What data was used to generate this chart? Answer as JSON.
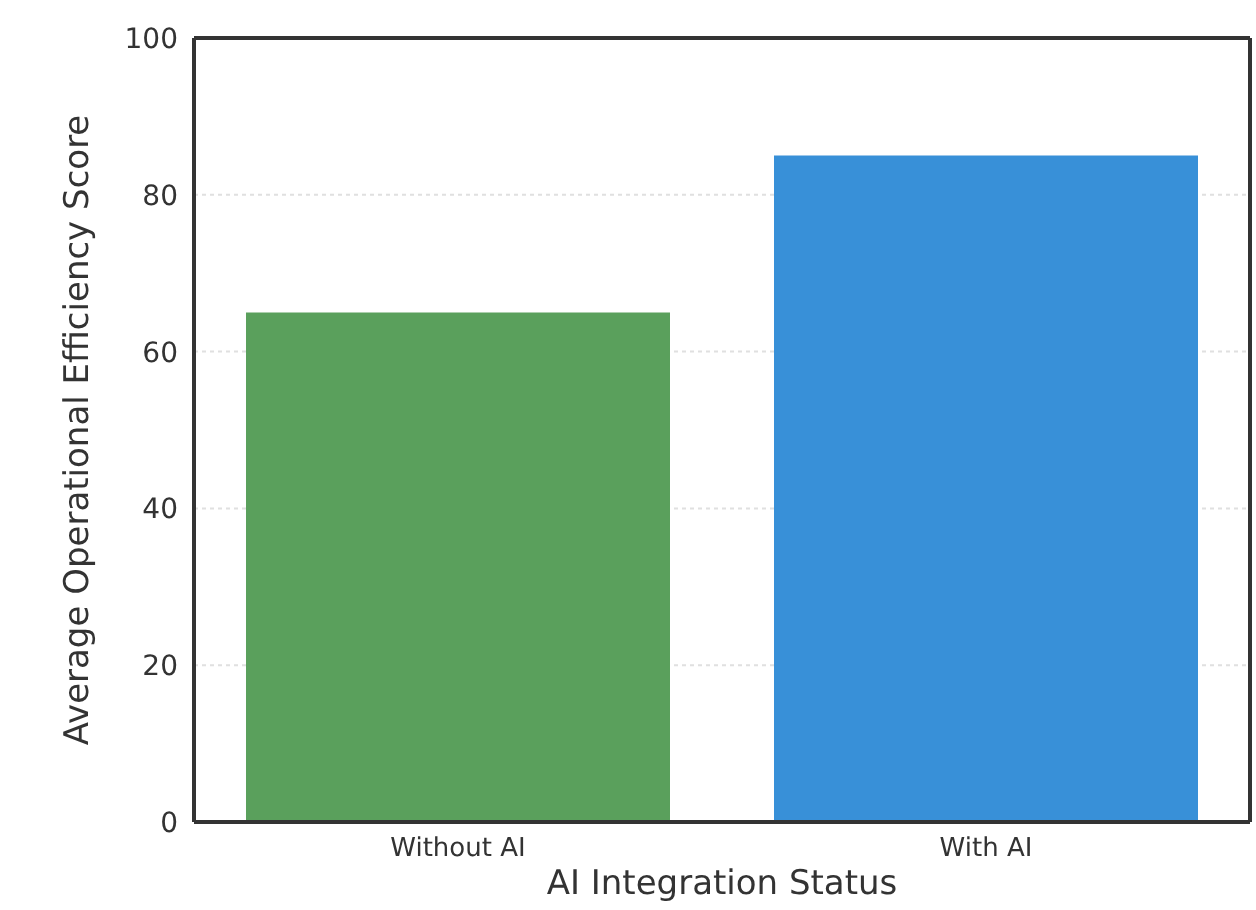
{
  "chart_data": {
    "type": "bar",
    "xlabel": "AI Integration Status",
    "ylabel": "Average Operational Efficiency Score",
    "categories": [
      "Without AI",
      "With AI"
    ],
    "values": [
      65,
      85
    ],
    "colors": [
      "#5aa05c",
      "#3890d8"
    ],
    "ylim": [
      0,
      100
    ],
    "yticks": [
      0,
      20,
      40,
      60,
      80,
      100
    ],
    "grid": "y"
  }
}
